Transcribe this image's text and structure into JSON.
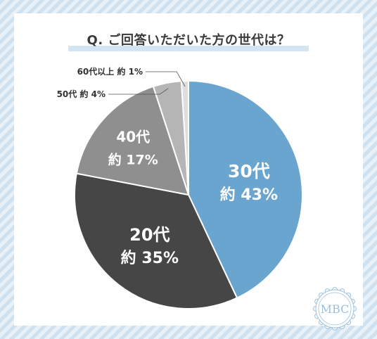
{
  "title": "Q. ご回答いただいた方の世代は？",
  "colors": {
    "s30": "#6aa5cf",
    "s20": "#464646",
    "s40": "#8f8f8f",
    "s50": "#b5b5b5",
    "s60": "#dedede",
    "background_stripe": "#cfe1ef",
    "logo": "#9bc0dd"
  },
  "chart_data": {
    "type": "pie",
    "title": "Q. ご回答いただいた方の世代は？",
    "slices": [
      {
        "category": "30代",
        "value": 43,
        "label": "約 43%"
      },
      {
        "category": "20代",
        "value": 35,
        "label": "約 35%"
      },
      {
        "category": "40代",
        "value": 17,
        "label": "約 17%"
      },
      {
        "category": "50代",
        "value": 4,
        "label": "約 4%"
      },
      {
        "category": "60代以上",
        "value": 1,
        "label": "約 1%"
      }
    ],
    "unit": "%",
    "legend": "none"
  },
  "outer_labels": {
    "s50": "50代 約 4%",
    "s60": "60代以上 約 1%"
  },
  "logo": {
    "text": "MBC",
    "icon": "scalloped-badge"
  }
}
